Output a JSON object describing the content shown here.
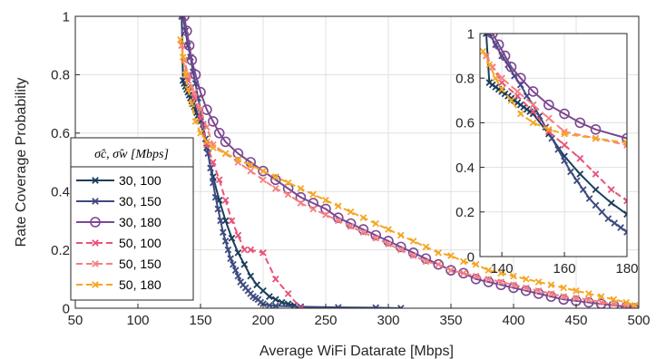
{
  "chart_data": {
    "type": "line",
    "xlabel": "Average WiFi Datarate [Mbps]",
    "ylabel": "Rate Coverage Probability",
    "xlim": [
      50,
      500
    ],
    "ylim": [
      0,
      1
    ],
    "xticks": [
      "50",
      "100",
      "150",
      "200",
      "250",
      "300",
      "350",
      "400",
      "450",
      "500"
    ],
    "yticks": [
      "0",
      "0.2",
      "0.4",
      "0.6",
      "0.8",
      "1"
    ],
    "grid": true,
    "legend": {
      "title": "σ̂c, σ̂w [Mbps]",
      "placement": "left"
    },
    "series": [
      {
        "name": "30, 100",
        "color": "#1a3d5c",
        "marker": "x",
        "line": "solid",
        "x": [
          135,
          136,
          137,
          138,
          139,
          140,
          141,
          142,
          143,
          144,
          145,
          146,
          147,
          148,
          149,
          150,
          155,
          160,
          165,
          170,
          175,
          180,
          185,
          190,
          195,
          200,
          205,
          210,
          215,
          220,
          225,
          230
        ],
        "y": [
          1.0,
          0.78,
          0.77,
          0.76,
          0.75,
          0.74,
          0.73,
          0.72,
          0.71,
          0.7,
          0.69,
          0.68,
          0.67,
          0.66,
          0.65,
          0.64,
          0.55,
          0.45,
          0.37,
          0.3,
          0.24,
          0.19,
          0.15,
          0.11,
          0.08,
          0.06,
          0.04,
          0.03,
          0.02,
          0.015,
          0.01,
          0.0
        ]
      },
      {
        "name": "30, 150",
        "color": "#3d4a80",
        "marker": "x",
        "line": "solid",
        "x": [
          136,
          138,
          140,
          142,
          144,
          146,
          148,
          150,
          152,
          154,
          156,
          158,
          160,
          162,
          164,
          166,
          168,
          170,
          172,
          174,
          176,
          178,
          180,
          182,
          184,
          186,
          188,
          190,
          192,
          194,
          196,
          198,
          200,
          205,
          210,
          230,
          260,
          290,
          310
        ],
        "y": [
          1.0,
          0.95,
          0.9,
          0.86,
          0.81,
          0.77,
          0.72,
          0.68,
          0.63,
          0.58,
          0.53,
          0.48,
          0.43,
          0.38,
          0.34,
          0.3,
          0.26,
          0.23,
          0.2,
          0.17,
          0.15,
          0.13,
          0.11,
          0.09,
          0.08,
          0.07,
          0.06,
          0.05,
          0.04,
          0.035,
          0.03,
          0.02,
          0.015,
          0.01,
          0.008,
          0.005,
          0.003,
          0.002,
          0.0
        ]
      },
      {
        "name": "30, 180",
        "color": "#7c4791",
        "marker": "o",
        "line": "solid",
        "x": [
          137,
          139,
          141,
          143,
          146,
          150,
          155,
          160,
          165,
          170,
          180,
          190,
          200,
          210,
          220,
          230,
          240,
          250,
          260,
          270,
          280,
          290,
          300,
          310,
          320,
          330,
          340,
          350,
          360,
          370,
          380,
          390,
          400,
          410,
          420,
          430,
          440,
          450,
          460,
          470,
          480,
          490,
          496
        ],
        "y": [
          1.0,
          0.95,
          0.9,
          0.85,
          0.8,
          0.74,
          0.68,
          0.64,
          0.6,
          0.57,
          0.53,
          0.5,
          0.47,
          0.44,
          0.41,
          0.38,
          0.36,
          0.34,
          0.31,
          0.29,
          0.27,
          0.25,
          0.23,
          0.21,
          0.19,
          0.17,
          0.15,
          0.13,
          0.12,
          0.1,
          0.09,
          0.08,
          0.07,
          0.06,
          0.05,
          0.04,
          0.03,
          0.025,
          0.02,
          0.015,
          0.01,
          0.005,
          0.0
        ]
      },
      {
        "name": "50, 100",
        "color": "#e8537a",
        "marker": "x",
        "line": "dashed",
        "x": [
          135,
          137,
          140,
          145,
          150,
          155,
          160,
          165,
          170,
          175,
          180,
          185,
          190,
          200,
          210,
          220,
          230
        ],
        "y": [
          0.9,
          0.85,
          0.78,
          0.72,
          0.65,
          0.56,
          0.5,
          0.44,
          0.37,
          0.3,
          0.25,
          0.2,
          0.2,
          0.19,
          0.1,
          0.05,
          0.0
        ]
      },
      {
        "name": "50, 150",
        "color": "#f48080",
        "marker": "x",
        "line": "dashed",
        "x": [
          135,
          137,
          140,
          145,
          150,
          155,
          160,
          170,
          180,
          190,
          200,
          210,
          220,
          230,
          240,
          250,
          260,
          270,
          280,
          290,
          300,
          310,
          320,
          330,
          340,
          350,
          360,
          370,
          380,
          390,
          400,
          410,
          420,
          430,
          440,
          450,
          460,
          470,
          480,
          490,
          496
        ],
        "y": [
          0.9,
          0.85,
          0.8,
          0.74,
          0.68,
          0.62,
          0.56,
          0.53,
          0.5,
          0.47,
          0.44,
          0.41,
          0.39,
          0.36,
          0.34,
          0.32,
          0.3,
          0.28,
          0.26,
          0.24,
          0.22,
          0.2,
          0.18,
          0.16,
          0.15,
          0.13,
          0.12,
          0.11,
          0.1,
          0.09,
          0.08,
          0.07,
          0.06,
          0.05,
          0.04,
          0.035,
          0.03,
          0.02,
          0.015,
          0.01,
          0.005
        ]
      },
      {
        "name": "50, 180",
        "color": "#f5a623",
        "marker": "x",
        "line": "dashed",
        "x": [
          134,
          136,
          138,
          140,
          143,
          146,
          150,
          155,
          160,
          170,
          180,
          190,
          200,
          210,
          220,
          230,
          240,
          250,
          260,
          270,
          280,
          290,
          300,
          310,
          320,
          330,
          340,
          350,
          360,
          370,
          380,
          390,
          400,
          410,
          420,
          430,
          440,
          450,
          460,
          470,
          480,
          490,
          497
        ],
        "y": [
          0.92,
          0.86,
          0.8,
          0.75,
          0.7,
          0.64,
          0.6,
          0.57,
          0.55,
          0.53,
          0.51,
          0.49,
          0.47,
          0.45,
          0.43,
          0.41,
          0.39,
          0.37,
          0.35,
          0.33,
          0.31,
          0.29,
          0.27,
          0.25,
          0.23,
          0.21,
          0.19,
          0.18,
          0.16,
          0.15,
          0.13,
          0.12,
          0.11,
          0.1,
          0.09,
          0.08,
          0.07,
          0.06,
          0.05,
          0.04,
          0.03,
          0.02,
          0.01
        ]
      }
    ],
    "inset": {
      "xlim": [
        133,
        180
      ],
      "ylim": [
        0,
        1
      ],
      "xticks": [
        "140",
        "160",
        "180"
      ],
      "yticks": [
        "0",
        "0.2",
        "0.4",
        "0.6",
        "0.8",
        "1"
      ],
      "grid": true
    }
  }
}
